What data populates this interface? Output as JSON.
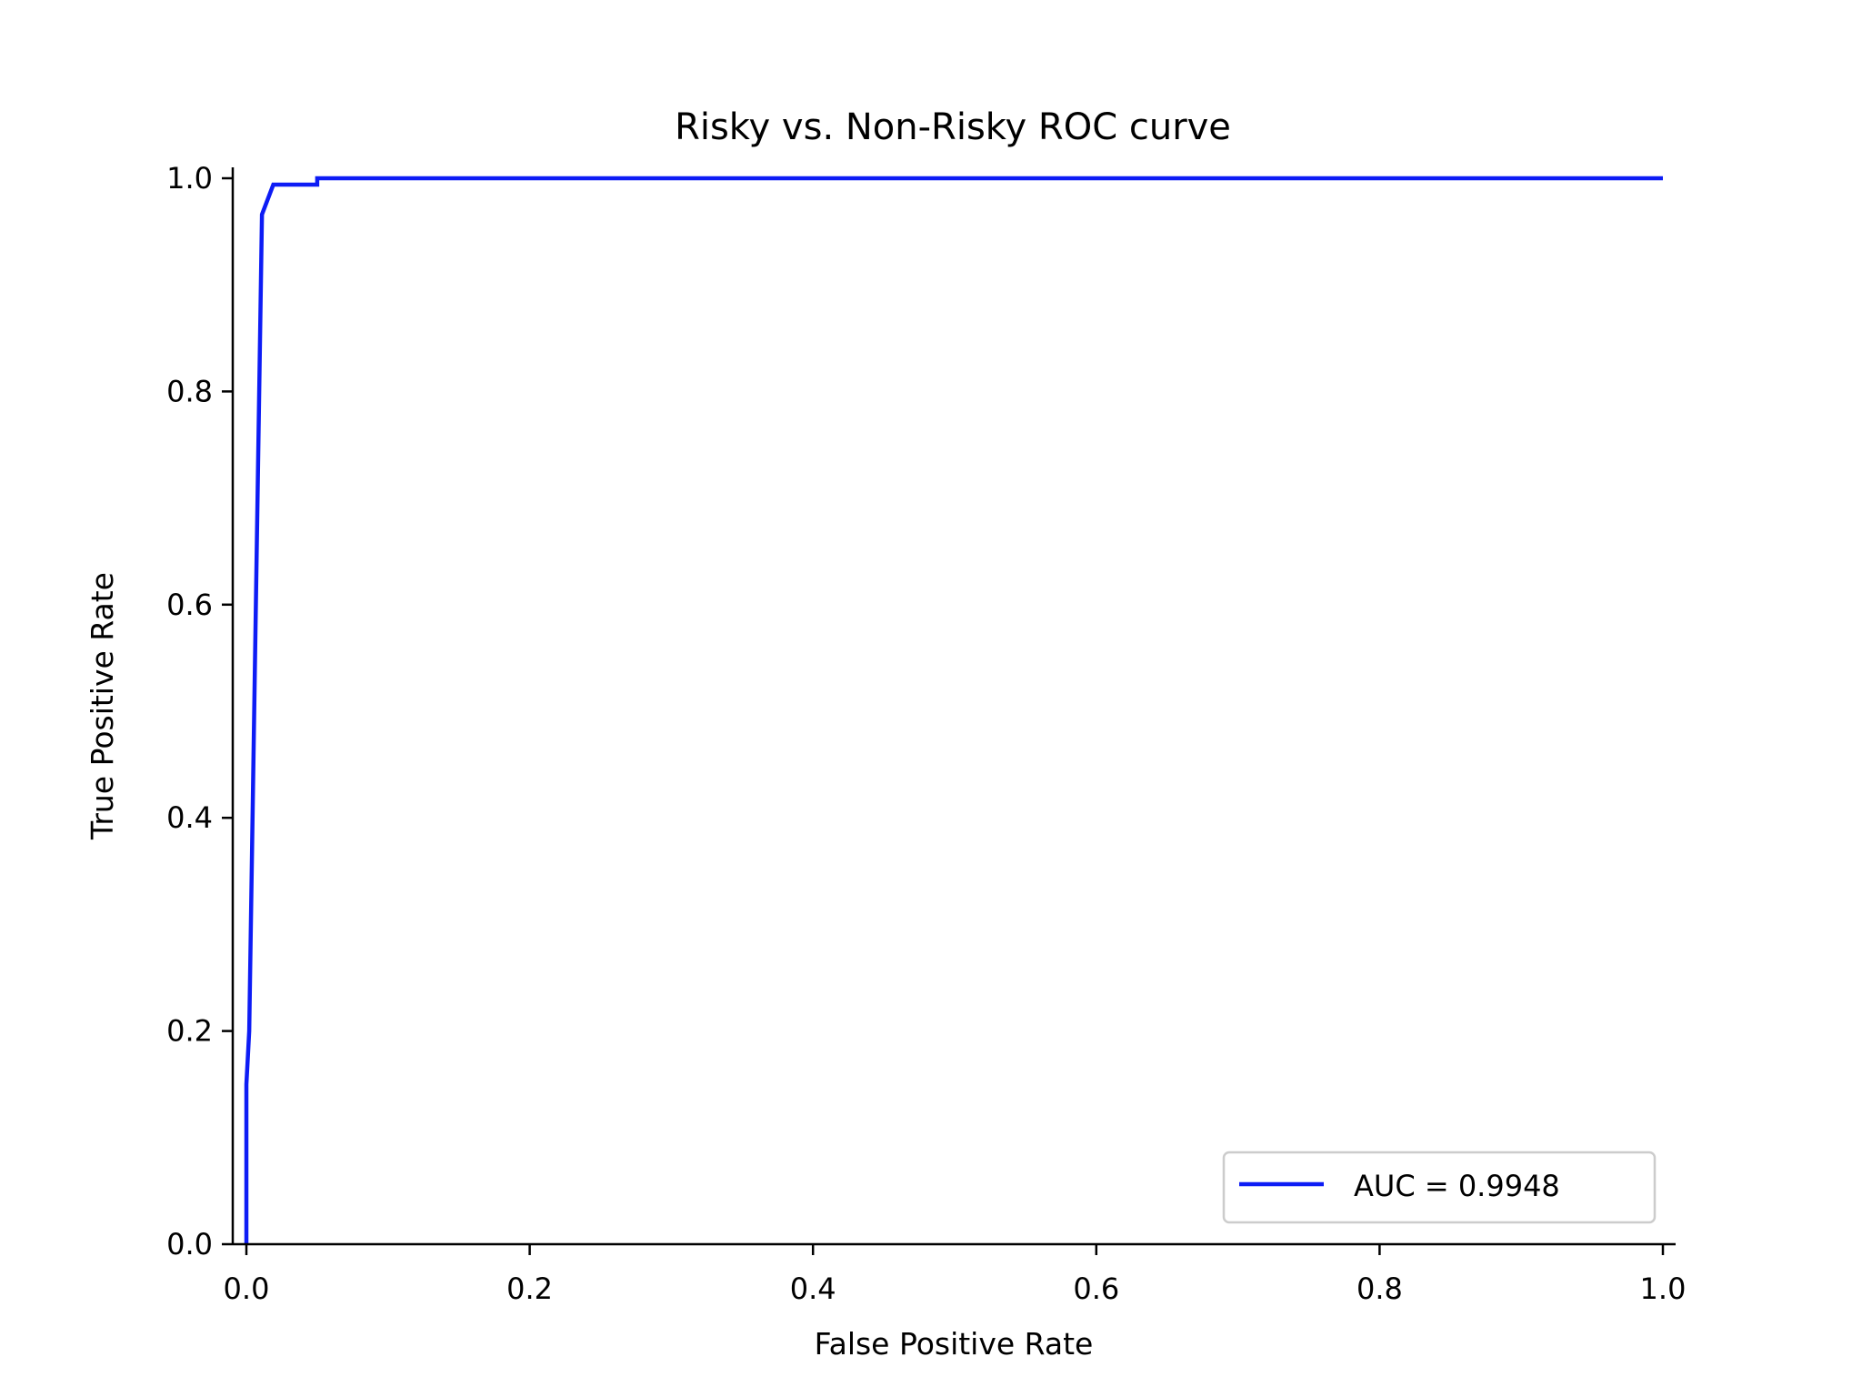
{
  "chart_data": {
    "type": "line",
    "title": "Risky vs. Non-Risky ROC curve",
    "xlabel": "False Positive Rate",
    "ylabel": "True Positive Rate",
    "xlim": [
      -0.01,
      1.01
    ],
    "ylim": [
      0.0,
      1.01
    ],
    "xticks": [
      "0.0",
      "0.2",
      "0.4",
      "0.6",
      "0.8",
      "1.0"
    ],
    "yticks": [
      "0.0",
      "0.2",
      "0.4",
      "0.6",
      "0.8",
      "1.0"
    ],
    "grid": false,
    "legend_position": "bottom-right",
    "series": [
      {
        "name": "AUC = 0.9948",
        "color": "#0d1cf5",
        "x": [
          0.0,
          0.0,
          0.002,
          0.011,
          0.019,
          0.05,
          0.05,
          1.0
        ],
        "y": [
          0.0,
          0.15,
          0.2,
          0.966,
          0.994,
          0.994,
          1.0,
          1.0
        ]
      }
    ]
  }
}
